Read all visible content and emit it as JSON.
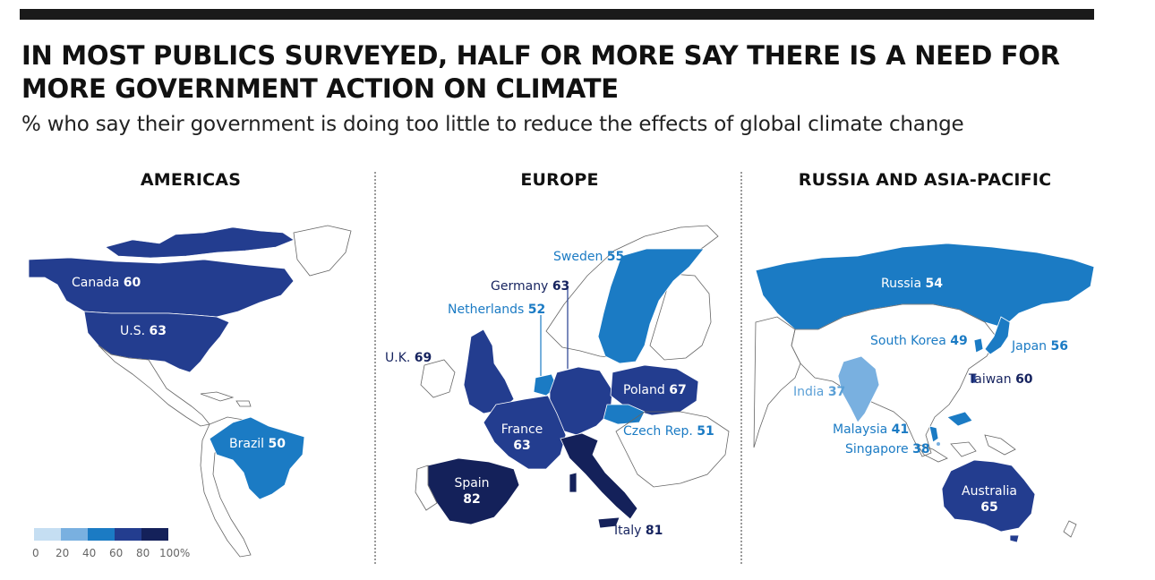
{
  "header": {
    "title": "IN MOST PUBLICS SURVEYED, HALF OR MORE SAY THERE IS A NEED FOR MORE GOVERNMENT ACTION ON CLIMATE",
    "subtitle": "% who say their government is doing too little to reduce the effects of global climate change"
  },
  "colors": {
    "scale_0_20": "#c5def2",
    "scale_20_40": "#79b0e0",
    "scale_40_60": "#1b7bc4",
    "scale_60_80": "#233d8f",
    "scale_80_100": "#14215a",
    "land_outline": "#666666",
    "bar": "#1a1a1a"
  },
  "regions": {
    "americas": {
      "title": "AMERICAS",
      "countries": [
        {
          "name": "Canada",
          "value": "60"
        },
        {
          "name": "U.S.",
          "value": "63"
        },
        {
          "name": "Brazil",
          "value": "50"
        }
      ]
    },
    "europe": {
      "title": "EUROPE",
      "countries": [
        {
          "name": "Sweden",
          "value": "55"
        },
        {
          "name": "Germany",
          "value": "63"
        },
        {
          "name": "Netherlands",
          "value": "52"
        },
        {
          "name": "U.K.",
          "value": "69"
        },
        {
          "name": "Poland",
          "value": "67"
        },
        {
          "name": "France",
          "value": "63"
        },
        {
          "name": "Czech Rep.",
          "value": "51"
        },
        {
          "name": "Spain",
          "value": "82"
        },
        {
          "name": "Italy",
          "value": "81"
        }
      ]
    },
    "asia": {
      "title": "RUSSIA AND ASIA-PACIFIC",
      "countries": [
        {
          "name": "Russia",
          "value": "54"
        },
        {
          "name": "South Korea",
          "value": "49"
        },
        {
          "name": "Japan",
          "value": "56"
        },
        {
          "name": "Taiwan",
          "value": "60"
        },
        {
          "name": "India",
          "value": "37"
        },
        {
          "name": "Malaysia",
          "value": "41"
        },
        {
          "name": "Singapore",
          "value": "38"
        },
        {
          "name": "Australia",
          "value": "65"
        }
      ]
    }
  },
  "legend": {
    "ticks": [
      "0",
      "20",
      "40",
      "60",
      "80",
      "100%"
    ]
  }
}
